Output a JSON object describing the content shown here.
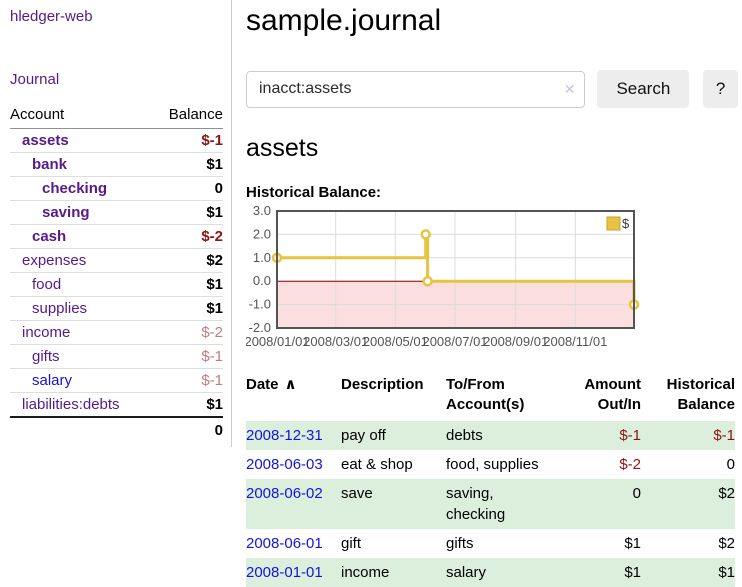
{
  "colors": {
    "visited_link_purple": "#551a8b",
    "unvisited_link_blue": "#1414dd",
    "negative_strong_red": "#8c1414",
    "negative_soft_red": "#c07c7c",
    "row_stripe_green": "#dceedc",
    "button_gray": "#ededed",
    "chart_line_yellow": "#e8c33f",
    "chart_legend_border": "#c3a02f",
    "chart_border_gray": "#545454",
    "chart_grid_gray": "#dcdcdc",
    "chart_negative_region_pink": "#fbdede",
    "chart_zero_line_darkred": "#8b0000"
  },
  "sidebar": {
    "brand": "hledger-web",
    "nav": {
      "journal": "Journal"
    },
    "accounts_table": {
      "col_account": "Account",
      "col_balance": "Balance",
      "rows": [
        {
          "name": "assets",
          "depth": 1,
          "bold": true,
          "balance": "$-1",
          "balance_style": "neg-strong"
        },
        {
          "name": "bank",
          "depth": 2,
          "bold": true,
          "balance": "$1",
          "balance_style": "pos"
        },
        {
          "name": "checking",
          "depth": 3,
          "bold": true,
          "balance": "0",
          "balance_style": "pos"
        },
        {
          "name": "saving",
          "depth": 3,
          "bold": true,
          "balance": "$1",
          "balance_style": "pos"
        },
        {
          "name": "cash",
          "depth": 2,
          "bold": true,
          "balance": "$-2",
          "balance_style": "neg-strong"
        },
        {
          "name": "expenses",
          "depth": 1,
          "bold": false,
          "balance": "$2",
          "balance_style": "pos"
        },
        {
          "name": "food",
          "depth": 2,
          "bold": false,
          "balance": "$1",
          "balance_style": "pos"
        },
        {
          "name": "supplies",
          "depth": 2,
          "bold": false,
          "balance": "$1",
          "balance_style": "pos"
        },
        {
          "name": "income",
          "depth": 1,
          "bold": false,
          "balance": "$-2",
          "balance_style": "neg-soft"
        },
        {
          "name": "gifts",
          "depth": 2,
          "bold": false,
          "balance": "$-1",
          "balance_style": "neg-soft"
        },
        {
          "name": "salary",
          "depth": 2,
          "bold": false,
          "balance": "$-1",
          "balance_style": "neg-soft",
          "link_unvisited": true
        },
        {
          "name": "liabilities:debts",
          "depth": 1,
          "bold": false,
          "balance": "$1",
          "balance_style": "pos"
        }
      ],
      "total": "0"
    }
  },
  "header": {
    "title": "sample.journal"
  },
  "search": {
    "value": "inacct:assets",
    "clear_icon": "✕",
    "button_label": "Search",
    "help_label": "?"
  },
  "account_page": {
    "heading": "assets",
    "chart_label": "Historical Balance:"
  },
  "chart_data": {
    "type": "line",
    "title": "Historical Balance of assets",
    "step": true,
    "series": [
      {
        "name": "$",
        "color": "#e8c33f",
        "points": [
          [
            "2008-01-01",
            1
          ],
          [
            "2008-06-01",
            2
          ],
          [
            "2008-06-03",
            0
          ],
          [
            "2008-12-31",
            -1
          ]
        ]
      }
    ],
    "x_range": [
      "2008-01-01",
      "2008-12-31"
    ],
    "x_tick_dates": [
      "2008-01-01",
      "2008-03-01",
      "2008-05-01",
      "2008-07-01",
      "2008-09-01",
      "2008-11-01"
    ],
    "x_tick_labels": [
      "2008/01/01",
      "2008/03/01",
      "2008/05/01",
      "2008/07/01",
      "2008/09/01",
      "2008/11/01"
    ],
    "ylim": [
      -2,
      3
    ],
    "y_ticks": [
      3,
      2,
      1,
      0,
      -1,
      -2
    ],
    "y_tick_labels": [
      "3.0",
      "2.0",
      "1.0",
      "0.0",
      "-1.0",
      "-2.0"
    ],
    "grid": true,
    "legend_position": "top-right",
    "legend_label": "$"
  },
  "register_table": {
    "columns": [
      {
        "lines": [
          "Date"
        ],
        "align": "l",
        "sortable": true,
        "sort_icon": "∧"
      },
      {
        "lines": [
          "Description"
        ],
        "align": "l"
      },
      {
        "lines": [
          "To/From",
          "Account(s)"
        ],
        "align": "l"
      },
      {
        "lines": [
          "Amount",
          "Out/In"
        ],
        "align": "r"
      },
      {
        "lines": [
          "Historical",
          "Balance"
        ],
        "align": "r"
      }
    ],
    "rows": [
      {
        "date": "2008-12-31",
        "description": "pay off",
        "accounts": "debts",
        "amount": "$-1",
        "balance": "$-1",
        "striped": true
      },
      {
        "date": "2008-06-03",
        "description": "eat & shop",
        "accounts": "food, supplies",
        "amount": "$-2",
        "balance": "0",
        "striped": false
      },
      {
        "date": "2008-06-02",
        "description": "save",
        "accounts": "saving,\nchecking",
        "amount": "0",
        "balance": "$2",
        "striped": true
      },
      {
        "date": "2008-06-01",
        "description": "gift",
        "accounts": "gifts",
        "amount": "$1",
        "balance": "$2",
        "striped": false
      },
      {
        "date": "2008-01-01",
        "description": "income",
        "accounts": "salary",
        "amount": "$1",
        "balance": "$1",
        "striped": true
      }
    ]
  }
}
